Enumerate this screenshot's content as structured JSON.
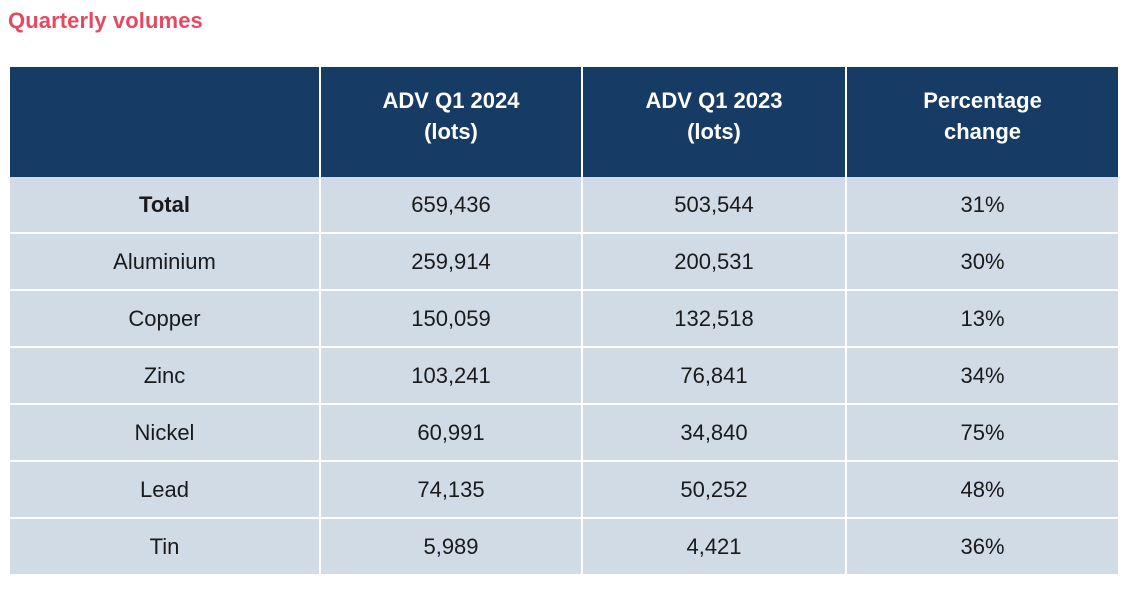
{
  "title": "Quarterly volumes",
  "table": {
    "headers": [
      "",
      "ADV Q1 2024\n(lots)",
      "ADV Q1 2023\n(lots)",
      "Percentage\nchange"
    ],
    "rows": [
      {
        "metal": "Total",
        "q1_2024": "659,436",
        "q1_2023": "503,544",
        "change": "31%"
      },
      {
        "metal": "Aluminium",
        "q1_2024": "259,914",
        "q1_2023": "200,531",
        "change": "30%"
      },
      {
        "metal": "Copper",
        "q1_2024": "150,059",
        "q1_2023": "132,518",
        "change": "13%"
      },
      {
        "metal": "Zinc",
        "q1_2024": "103,241",
        "q1_2023": "76,841",
        "change": "34%"
      },
      {
        "metal": "Nickel",
        "q1_2024": "60,991",
        "q1_2023": "34,840",
        "change": "75%"
      },
      {
        "metal": "Lead",
        "q1_2024": "74,135",
        "q1_2023": "50,252",
        "change": "48%"
      },
      {
        "metal": "Tin",
        "q1_2024": "5,989",
        "q1_2023": "4,421",
        "change": "36%"
      }
    ]
  },
  "colors": {
    "title": "#e8485f",
    "header_bg": "#163b64",
    "row_bg": "#d1dbe6"
  }
}
